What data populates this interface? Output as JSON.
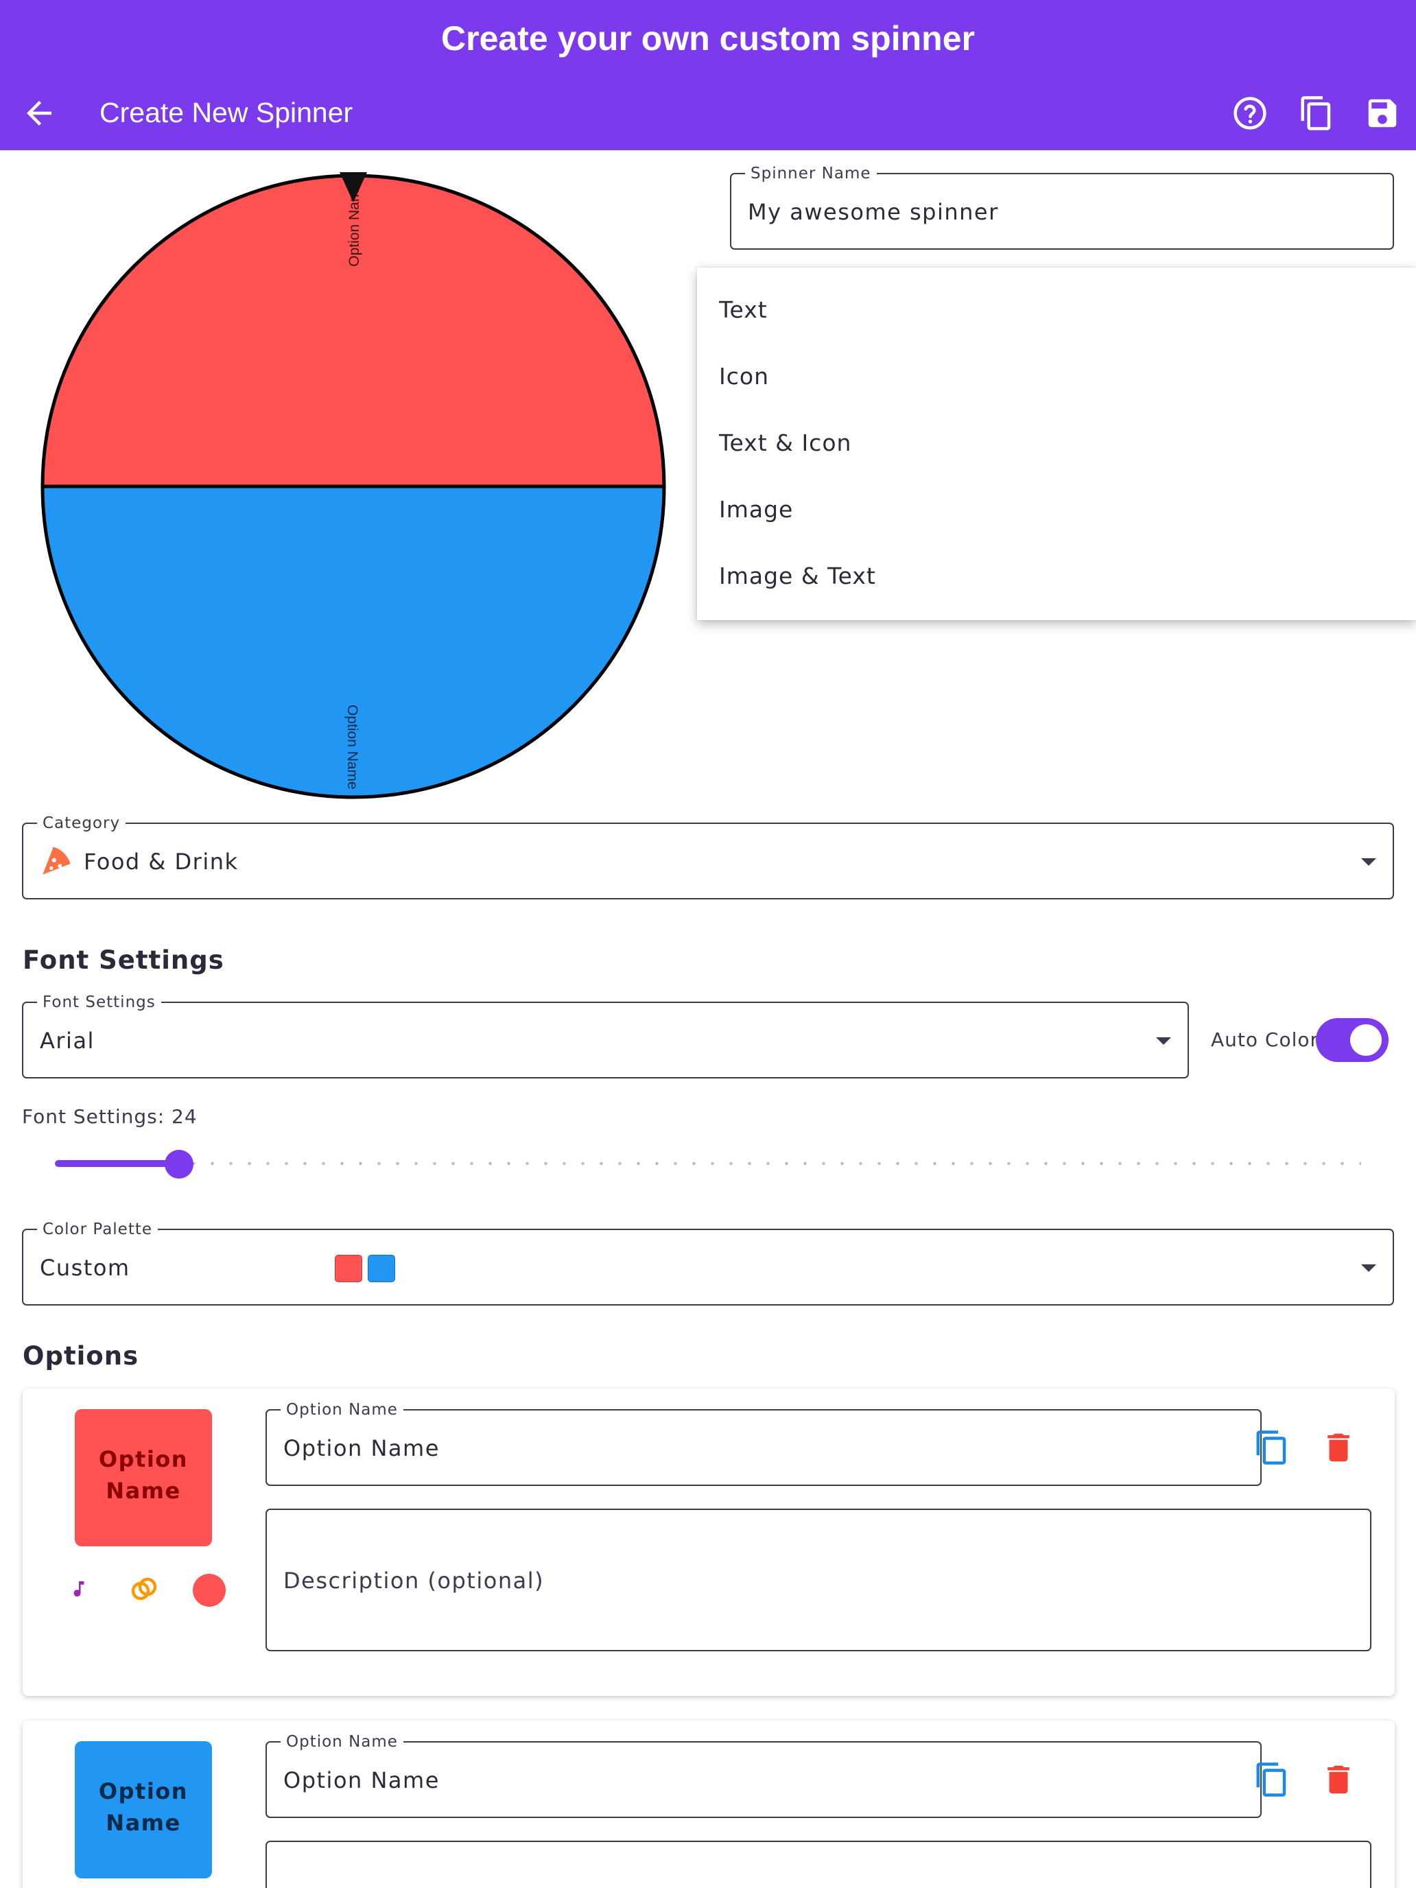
{
  "banner": {
    "title": "Create your own custom spinner"
  },
  "appbar": {
    "title": "Create New Spinner",
    "icons": [
      "back-arrow-icon",
      "help-icon",
      "copy-icon",
      "save-icon"
    ]
  },
  "wheel": {
    "segments": [
      {
        "label": "Option Name",
        "color": "#ff5252"
      },
      {
        "label": "Option Name",
        "color": "#2196f3"
      }
    ]
  },
  "spinner_name": {
    "label": "Spinner Name",
    "value": "My awesome spinner"
  },
  "display_menu": {
    "items": [
      "Text",
      "Icon",
      "Text & Icon",
      "Image",
      "Image & Text"
    ]
  },
  "category": {
    "label": "Category",
    "value": "Food & Drink",
    "icon": "pizza-icon"
  },
  "font_section": {
    "heading": "Font Settings",
    "font_label": "Font Settings",
    "font_value": "Arial",
    "auto_color_label": "Auto Color",
    "auto_color_on": true,
    "size_label": "Font Settings: 24",
    "size_fraction": 0.09
  },
  "palette": {
    "label": "Color Palette",
    "value": "Custom",
    "colors": [
      "#ff5252",
      "#2196f3"
    ]
  },
  "options_section": {
    "heading": "Options",
    "items": [
      {
        "preview": "Option Name",
        "color": "#ff5252",
        "text_color": "#8b0000",
        "name_label": "Option Name",
        "name_value": "Option Name",
        "description_placeholder": "Description (optional)"
      },
      {
        "preview": "Option Name",
        "color": "#2196f3",
        "text_color": "#0b2a4a",
        "name_label": "Option Name",
        "name_value": "Option Name",
        "description_placeholder": ""
      }
    ]
  },
  "colors": {
    "primary": "#7c3aed",
    "accent_blue": "#1e88e5",
    "delete_red": "#f44336"
  }
}
